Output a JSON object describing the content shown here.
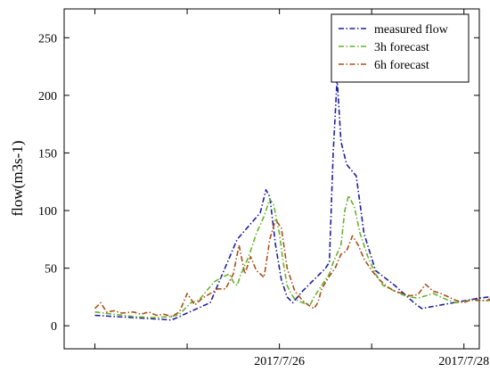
{
  "chart_data": {
    "type": "line",
    "title": "",
    "xlabel": "",
    "ylabel": "flow(m3s-1)",
    "xlim": [
      -8,
      100
    ],
    "ylim": [
      -20,
      275
    ],
    "yticks": [
      0,
      50,
      100,
      150,
      200,
      250
    ],
    "xticks_major": [
      {
        "x": 0,
        "label": ""
      },
      {
        "x": 24,
        "label": ""
      },
      {
        "x": 48,
        "label": "2017/7/26"
      },
      {
        "x": 72,
        "label": ""
      },
      {
        "x": 96,
        "label": "2017/7/28"
      },
      {
        "x": 120,
        "label": ""
      }
    ],
    "grid": false,
    "legend": "top-right",
    "series": [
      {
        "name": "measured flow",
        "color": "#1f1f9e",
        "points": [
          [
            0,
            9
          ],
          [
            10,
            7
          ],
          [
            20,
            5
          ],
          [
            30,
            20
          ],
          [
            37,
            75
          ],
          [
            43,
            98
          ],
          [
            44.5,
            118
          ],
          [
            45.5,
            112
          ],
          [
            47,
            70
          ],
          [
            48.5,
            40
          ],
          [
            50,
            25
          ],
          [
            51.5,
            20
          ],
          [
            54,
            30
          ],
          [
            57,
            40
          ],
          [
            60,
            50
          ],
          [
            61,
            55
          ],
          [
            62,
            150
          ],
          [
            63,
            215
          ],
          [
            64,
            160
          ],
          [
            65.5,
            140
          ],
          [
            68,
            130
          ],
          [
            70,
            80
          ],
          [
            73,
            48
          ],
          [
            78,
            35
          ],
          [
            83,
            20
          ],
          [
            85,
            15
          ],
          [
            90,
            18
          ],
          [
            95,
            21
          ],
          [
            100,
            24
          ],
          [
            105,
            26
          ]
        ]
      },
      {
        "name": "3h forecast",
        "color": "#66b22e",
        "points": [
          [
            0,
            12
          ],
          [
            5,
            10
          ],
          [
            10,
            8
          ],
          [
            15,
            7
          ],
          [
            20,
            8
          ],
          [
            22,
            10
          ],
          [
            25,
            20
          ],
          [
            27,
            22
          ],
          [
            29,
            30
          ],
          [
            31,
            38
          ],
          [
            33,
            42
          ],
          [
            35,
            45
          ],
          [
            36,
            38
          ],
          [
            37,
            35
          ],
          [
            38,
            45
          ],
          [
            40,
            60
          ],
          [
            42,
            80
          ],
          [
            44,
            95
          ],
          [
            45.5,
            110
          ],
          [
            46.5,
            105
          ],
          [
            48,
            80
          ],
          [
            49,
            55
          ],
          [
            50,
            35
          ],
          [
            51,
            28
          ],
          [
            52,
            23
          ],
          [
            54,
            20
          ],
          [
            56,
            18
          ],
          [
            57,
            25
          ],
          [
            58,
            30
          ],
          [
            59,
            35
          ],
          [
            61,
            45
          ],
          [
            62,
            55
          ],
          [
            64,
            70
          ],
          [
            65,
            100
          ],
          [
            66,
            113
          ],
          [
            67.5,
            103
          ],
          [
            69,
            80
          ],
          [
            71,
            60
          ],
          [
            73,
            45
          ],
          [
            75,
            35
          ],
          [
            78,
            30
          ],
          [
            80,
            27
          ],
          [
            82,
            25
          ],
          [
            84,
            24
          ],
          [
            86,
            26
          ],
          [
            88,
            28
          ],
          [
            90,
            25
          ],
          [
            92,
            22
          ],
          [
            94,
            20
          ],
          [
            96,
            21
          ],
          [
            98,
            22
          ],
          [
            100,
            22
          ],
          [
            103,
            22
          ],
          [
            105,
            22
          ]
        ]
      },
      {
        "name": "6h forecast",
        "color": "#a8511a",
        "points": [
          [
            0,
            15
          ],
          [
            1.5,
            20
          ],
          [
            3,
            12
          ],
          [
            5,
            13
          ],
          [
            7,
            11
          ],
          [
            10,
            12
          ],
          [
            12,
            10
          ],
          [
            14,
            12
          ],
          [
            16,
            9
          ],
          [
            18,
            10
          ],
          [
            20,
            8
          ],
          [
            22,
            12
          ],
          [
            24,
            28
          ],
          [
            26,
            18
          ],
          [
            28,
            24
          ],
          [
            30,
            28
          ],
          [
            32,
            32
          ],
          [
            34,
            32
          ],
          [
            36,
            45
          ],
          [
            37.5,
            70
          ],
          [
            39,
            45
          ],
          [
            40.5,
            60
          ],
          [
            42,
            48
          ],
          [
            44,
            42
          ],
          [
            45.5,
            75
          ],
          [
            47,
            92
          ],
          [
            48.5,
            85
          ],
          [
            50,
            50
          ],
          [
            52,
            30
          ],
          [
            54,
            22
          ],
          [
            55.5,
            18
          ],
          [
            57,
            15
          ],
          [
            58,
            20
          ],
          [
            59,
            32
          ],
          [
            61,
            43
          ],
          [
            62.5,
            50
          ],
          [
            64,
            62
          ],
          [
            65.5,
            65
          ],
          [
            67,
            78
          ],
          [
            68.5,
            70
          ],
          [
            70,
            58
          ],
          [
            72,
            48
          ],
          [
            74,
            40
          ],
          [
            76,
            34
          ],
          [
            78,
            30
          ],
          [
            80,
            28
          ],
          [
            82,
            26
          ],
          [
            84,
            27
          ],
          [
            86,
            36
          ],
          [
            88,
            30
          ],
          [
            90,
            28
          ],
          [
            92,
            25
          ],
          [
            94,
            22
          ],
          [
            96,
            20
          ],
          [
            98,
            23
          ],
          [
            100,
            22
          ],
          [
            102,
            22
          ],
          [
            105,
            27
          ]
        ]
      }
    ]
  }
}
